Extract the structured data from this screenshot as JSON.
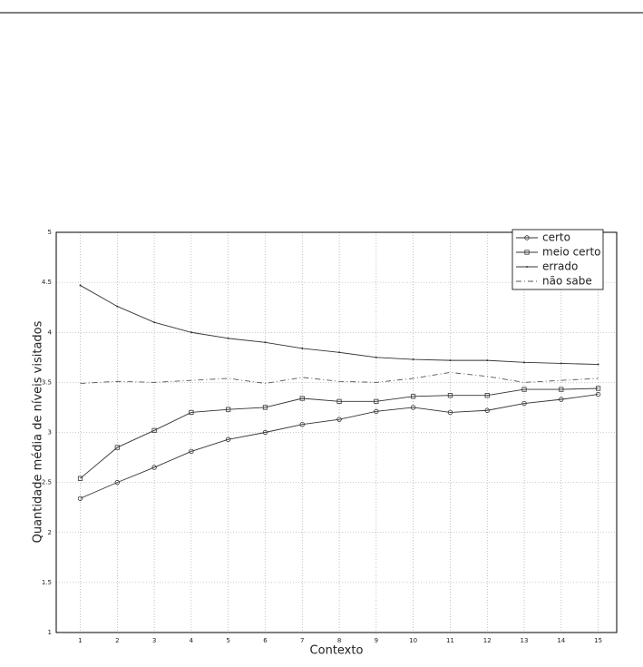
{
  "chart_data": {
    "type": "line",
    "x_label": "Contexto",
    "y_label": "Quantidade média de níveis visitados",
    "x": [
      1,
      2,
      3,
      4,
      5,
      6,
      7,
      8,
      9,
      10,
      11,
      12,
      13,
      14,
      15
    ],
    "xlim": [
      0.35,
      15.5
    ],
    "xticks": [
      1,
      2,
      3,
      4,
      5,
      6,
      7,
      8,
      9,
      10,
      11,
      12,
      13,
      14,
      15
    ],
    "ylim": [
      1,
      5
    ],
    "yticks": [
      1,
      1.5,
      2,
      2.5,
      3,
      3.5,
      4,
      4.5,
      5
    ],
    "grid": true,
    "legend": "upper right",
    "series": [
      {
        "name": "certo",
        "color": "#333333",
        "marker": "o",
        "linestyle": "solid",
        "values": [
          2.34,
          2.5,
          2.65,
          2.81,
          2.93,
          3.0,
          3.08,
          3.13,
          3.21,
          3.25,
          3.2,
          3.22,
          3.29,
          3.33,
          3.38
        ]
      },
      {
        "name": "meio certo",
        "color": "#333333",
        "marker": "s",
        "linestyle": "solid",
        "values": [
          2.54,
          2.85,
          3.02,
          3.2,
          3.23,
          3.25,
          3.34,
          3.31,
          3.31,
          3.36,
          3.37,
          3.37,
          3.43,
          3.43,
          3.44
        ]
      },
      {
        "name": "errado",
        "color": "#333333",
        "marker": ".",
        "linestyle": "solid",
        "values": [
          4.47,
          4.26,
          4.1,
          4.0,
          3.94,
          3.9,
          3.84,
          3.8,
          3.75,
          3.73,
          3.72,
          3.72,
          3.7,
          3.69,
          3.68
        ]
      },
      {
        "name": "não sabe",
        "color": "#555555",
        "marker": "none",
        "linestyle": "dashdot",
        "values": [
          3.49,
          3.51,
          3.5,
          3.52,
          3.54,
          3.49,
          3.55,
          3.51,
          3.5,
          3.54,
          3.6,
          3.56,
          3.5,
          3.52,
          3.54
        ]
      }
    ]
  }
}
